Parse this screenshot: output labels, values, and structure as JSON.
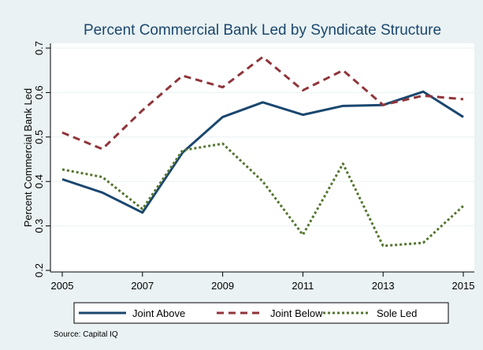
{
  "chart_data": {
    "type": "line",
    "title": "Percent Commercial Bank Led by Syndicate Structure",
    "xlabel": "",
    "ylabel": "Percent Commercial Bank Led",
    "x": [
      2005,
      2006,
      2007,
      2008,
      2009,
      2010,
      2011,
      2012,
      2013,
      2014,
      2015
    ],
    "xlim": [
      2005,
      2015
    ],
    "ylim": [
      0.2,
      0.7
    ],
    "x_ticks": [
      "2005",
      "2007",
      "2009",
      "2011",
      "2013",
      "2015"
    ],
    "y_ticks": [
      "0.2",
      "0.3",
      "0.4",
      "0.5",
      "0.6",
      "0.7"
    ],
    "grid": true,
    "legend_position": "bottom",
    "series": [
      {
        "name": "Joint Above",
        "color": "#1a476f",
        "style": "solid",
        "values": [
          0.405,
          0.375,
          0.33,
          0.465,
          0.545,
          0.578,
          0.55,
          0.57,
          0.572,
          0.602,
          0.545
        ]
      },
      {
        "name": "Joint Below",
        "color": "#90353b",
        "style": "dashed",
        "values": [
          0.51,
          0.473,
          0.56,
          0.638,
          0.612,
          0.68,
          0.605,
          0.65,
          0.572,
          0.593,
          0.585
        ]
      },
      {
        "name": "Sole Led",
        "color": "#55752f",
        "style": "dotted",
        "values": [
          0.427,
          0.41,
          0.338,
          0.47,
          0.485,
          0.4,
          0.28,
          0.44,
          0.255,
          0.262,
          0.345
        ]
      }
    ]
  },
  "note": "Source: Capital IQ",
  "colors": {
    "background": "#eaf2f3",
    "plot_background": "#ffffff",
    "grid": "#eaf2f3",
    "title": "#1a476f"
  }
}
